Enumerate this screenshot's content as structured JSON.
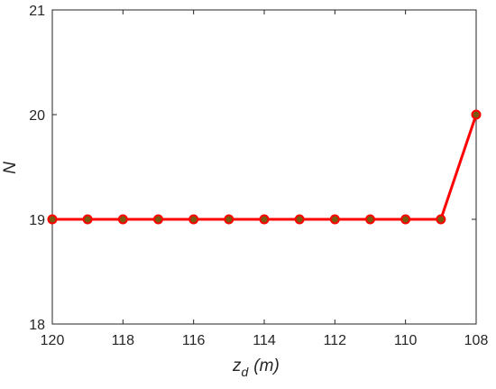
{
  "chart_data": {
    "type": "line",
    "xlabel": {
      "main": "z",
      "sub": "d",
      "unit": "(m)"
    },
    "ylabel": "N",
    "xlim": [
      108,
      120
    ],
    "ylim": [
      18,
      21
    ],
    "x_reversed": true,
    "grid": false,
    "x_ticks": [
      120,
      118,
      116,
      114,
      112,
      110,
      108
    ],
    "y_ticks": [
      18,
      19,
      20,
      21
    ],
    "series": [
      {
        "x": [
          120,
          119,
          118,
          117,
          116,
          115,
          114,
          113,
          112,
          111,
          110,
          109,
          108
        ],
        "y": [
          19,
          19,
          19,
          19,
          19,
          19,
          19,
          19,
          19,
          19,
          19,
          19,
          20
        ]
      }
    ],
    "colors": {
      "line": "#ff0000",
      "marker_edge": "#ff0000",
      "marker_core": "#7a5a10",
      "axis": "#262626"
    }
  }
}
